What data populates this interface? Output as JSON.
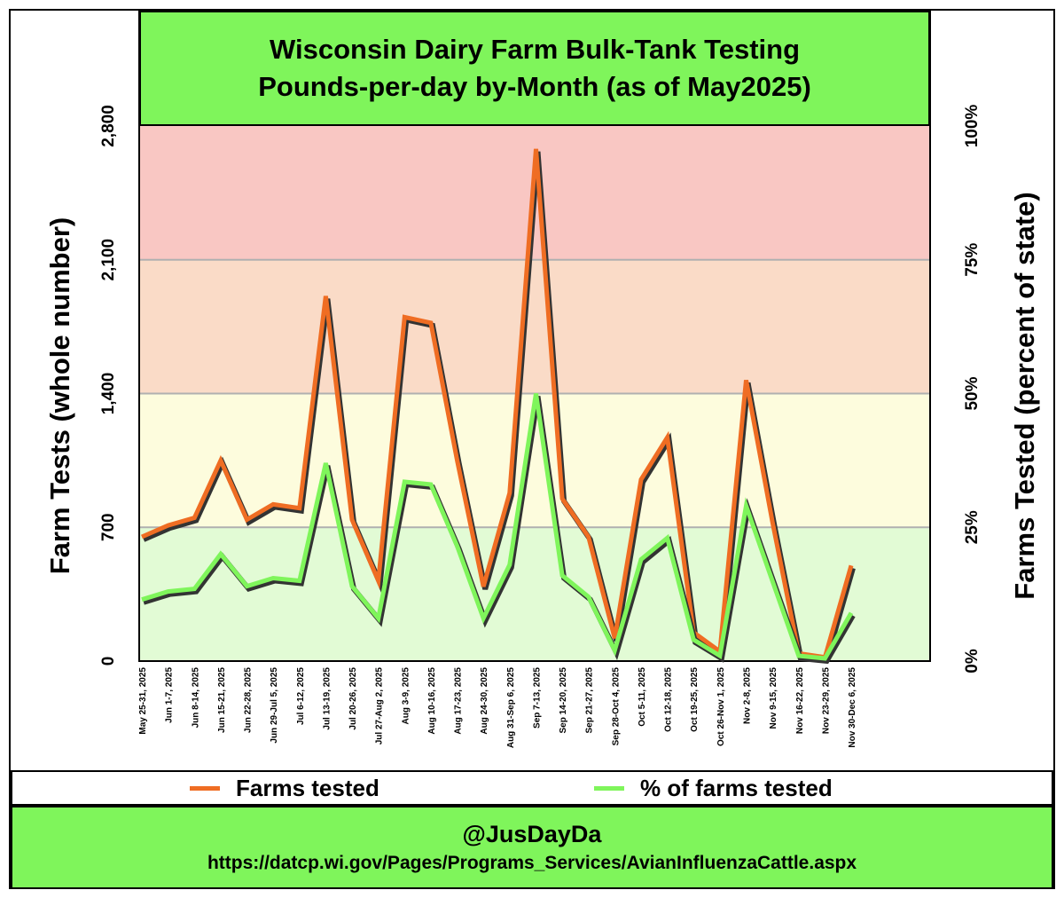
{
  "title_line1": "Wisconsin Dairy Farm Bulk-Tank Testing",
  "title_line2": "Pounds-per-day by-Month (as of May2025)",
  "footer": {
    "handle": "@JusDayDa",
    "url": "https://datcp.wi.gov/Pages/Programs_Services/AvianInfluenzaCattle.aspx"
  },
  "legend": [
    {
      "label": "Farms tested",
      "color": "#ef6d23"
    },
    {
      "label": "% of farms tested",
      "color": "#7ff55b"
    }
  ],
  "chart_data": {
    "type": "line",
    "title": "Wisconsin Dairy Farm Bulk-Tank Testing Pounds-per-day by-Month (as of May2025)",
    "ylabel": "Farm Tests (whole number)",
    "ylabel_right": "Farms Tested (percent of state)",
    "ylim": [
      0,
      2800
    ],
    "ylim_right": [
      0,
      100
    ],
    "yticks": [
      "0",
      "700",
      "1,400",
      "2,100",
      "2,800"
    ],
    "yticks_right": [
      "0%",
      "25%",
      "50%",
      "75%",
      "100%"
    ],
    "bands": [
      {
        "from": 0,
        "to": 700,
        "color": "#e2fbd5"
      },
      {
        "from": 700,
        "to": 1400,
        "color": "#fdfcdd"
      },
      {
        "from": 1400,
        "to": 2100,
        "color": "#fadbc7"
      },
      {
        "from": 2100,
        "to": 2800,
        "color": "#f9c7c3"
      }
    ],
    "grid": false,
    "legend_position": "bottom",
    "categories": [
      "May 25-31, 2025",
      "Jun 1-7, 2025",
      "Jun 8-14, 2025",
      "Jun 15-21, 2025",
      "Jun 22-28, 2025",
      "Jun 29-Jul 5, 2025",
      "Jul 6-12, 2025",
      "Jul 13-19, 2025",
      "Jul 20-26, 2025",
      "Jul 27-Aug 2, 2025",
      "Aug 3-9, 2025",
      "Aug 10-16, 2025",
      "Aug 17-23, 2025",
      "Aug 24-30, 2025",
      "Aug 31-Sep 6, 2025",
      "Sep 7-13, 2025",
      "Sep 14-20, 2025",
      "Sep 21-27, 2025",
      "Sep 28-Oct 4, 2025",
      "Oct 5-11, 2025",
      "Oct 12-18, 2025",
      "Oct 19-25, 2025",
      "Oct 26-Nov 1, 2025",
      "Nov 2-8, 2025",
      "Nov 9-15, 2025",
      "Nov 16-22, 2025",
      "Nov 23-29, 2025",
      "Nov 30-Dec 6, 2025"
    ],
    "series": [
      {
        "name": "Farms tested",
        "axis": "left",
        "color": "#ef6d23",
        "values": [
          650,
          710,
          750,
          1050,
          740,
          820,
          800,
          1910,
          740,
          420,
          1800,
          1770,
          1050,
          390,
          880,
          2680,
          850,
          650,
          120,
          950,
          1170,
          150,
          50,
          1470,
          730,
          40,
          20,
          500
        ]
      },
      {
        "name": "% of farms tested",
        "axis": "right",
        "color": "#7ff55b",
        "values": [
          11.5,
          13,
          13.5,
          20,
          14,
          15.5,
          15,
          37,
          14,
          8,
          33.5,
          33,
          21.5,
          8,
          18,
          50,
          16,
          12,
          2,
          19,
          23,
          4,
          1,
          29,
          15,
          1,
          0.5,
          9
        ]
      }
    ]
  }
}
